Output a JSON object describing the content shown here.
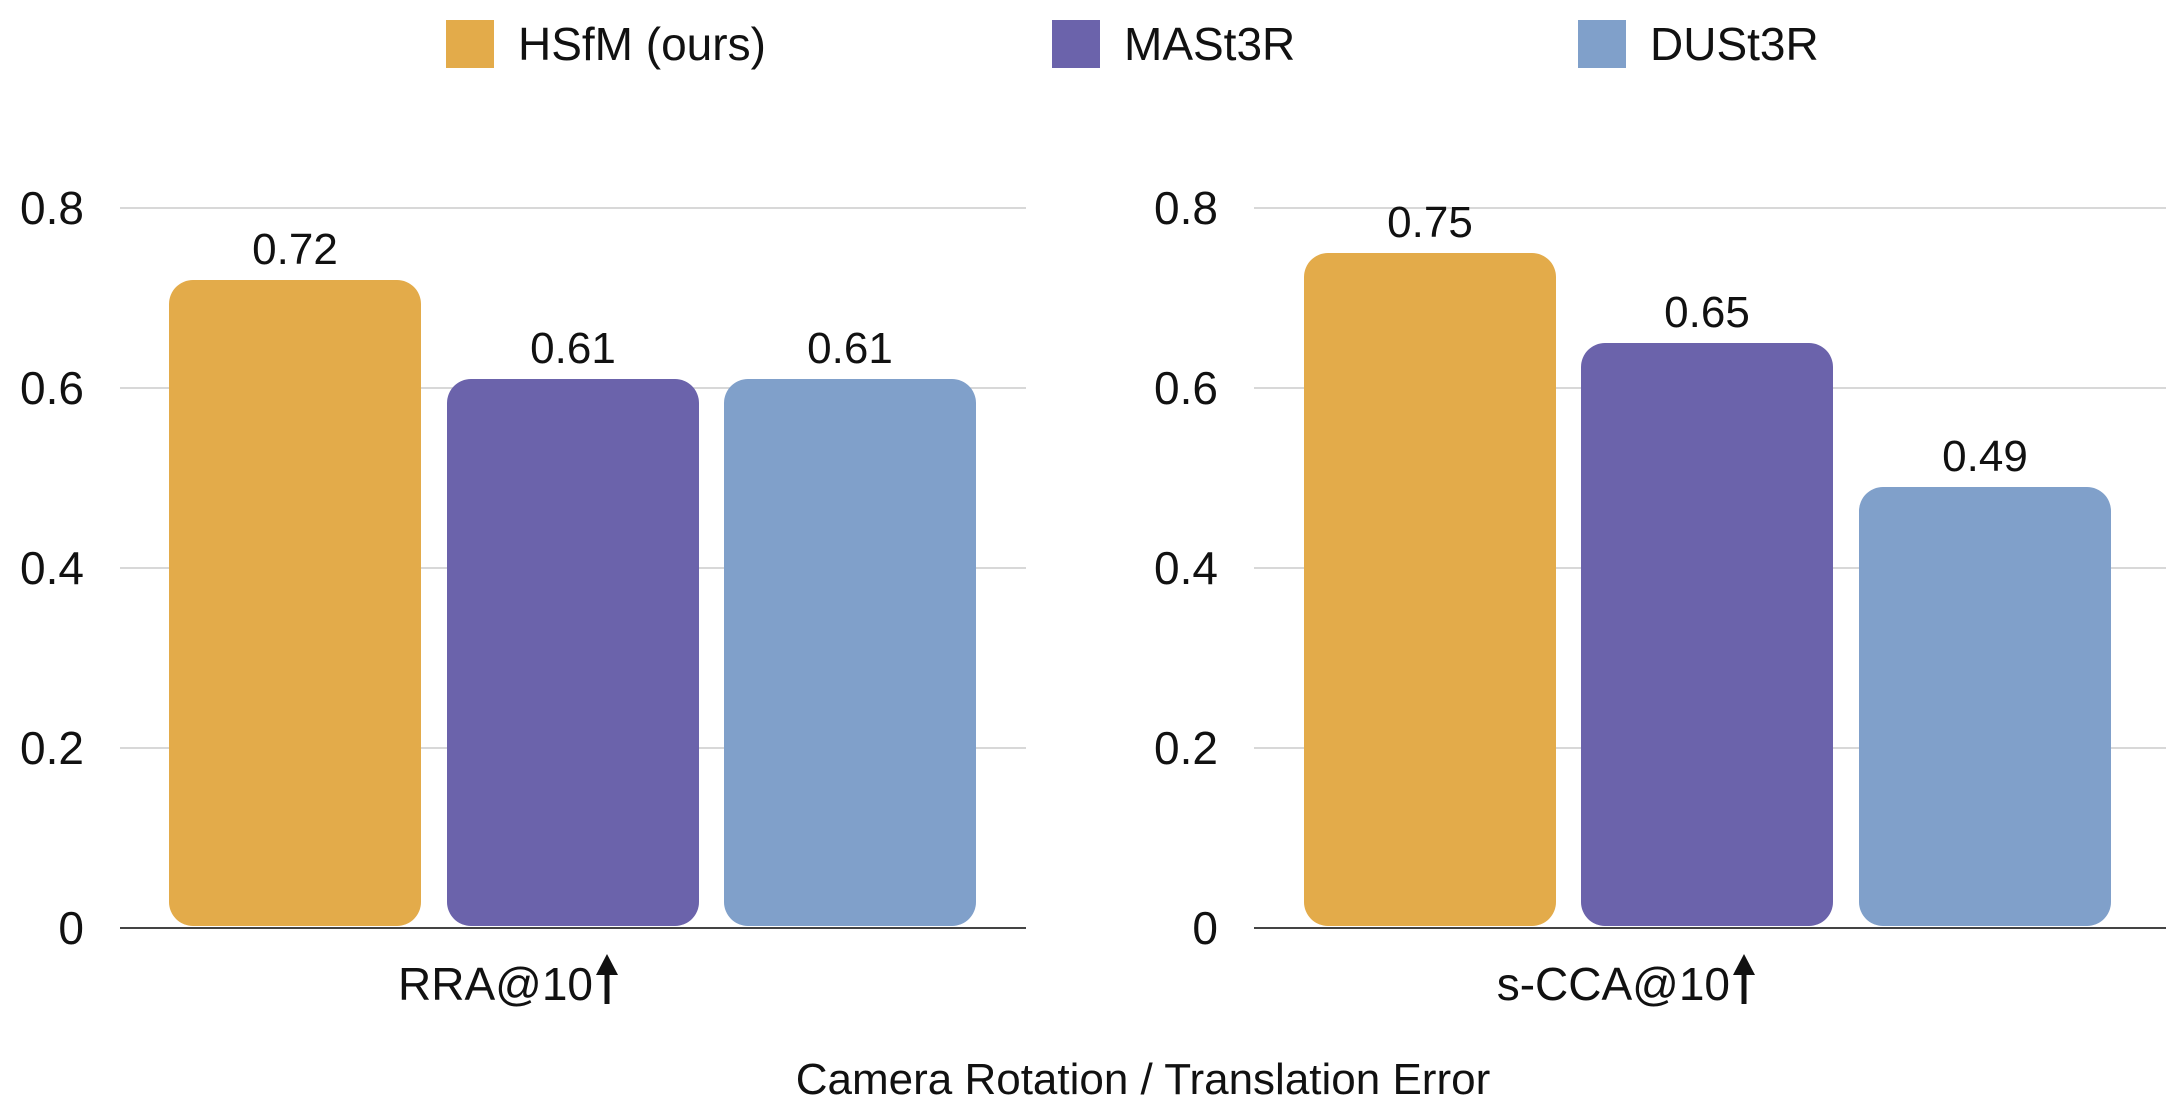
{
  "legend": [
    {
      "label": "HSfM (ours)",
      "color": "#E3AB4A"
    },
    {
      "label": "MASt3R",
      "color": "#6B63AB"
    },
    {
      "label": "DUSt3R",
      "color": "#80A0CA"
    }
  ],
  "chart_data": [
    {
      "type": "bar",
      "categories": [
        "RRA@10"
      ],
      "series": [
        {
          "name": "HSfM (ours)",
          "values": [
            0.72
          ]
        },
        {
          "name": "MASt3R",
          "values": [
            0.61
          ]
        },
        {
          "name": "DUSt3R",
          "values": [
            0.61
          ]
        }
      ],
      "data_labels": [
        "0.72",
        "0.61",
        "0.61"
      ],
      "category_label": "RRA@10",
      "arrow": "up",
      "ylim": [
        0,
        0.8
      ],
      "yticks": [
        "0",
        "0.2",
        "0.4",
        "0.6",
        "0.8"
      ],
      "grid": true
    },
    {
      "type": "bar",
      "categories": [
        "s-CCA@10"
      ],
      "series": [
        {
          "name": "HSfM (ours)",
          "values": [
            0.75
          ]
        },
        {
          "name": "MASt3R",
          "values": [
            0.65
          ]
        },
        {
          "name": "DUSt3R",
          "values": [
            0.49
          ]
        }
      ],
      "data_labels": [
        "0.75",
        "0.65",
        "0.49"
      ],
      "category_label": "s-CCA@10",
      "arrow": "up",
      "ylim": [
        0,
        0.8
      ],
      "yticks": [
        "0",
        "0.2",
        "0.4",
        "0.6",
        "0.8"
      ],
      "grid": true
    }
  ],
  "xlabel": "Camera Rotation / Translation Error"
}
